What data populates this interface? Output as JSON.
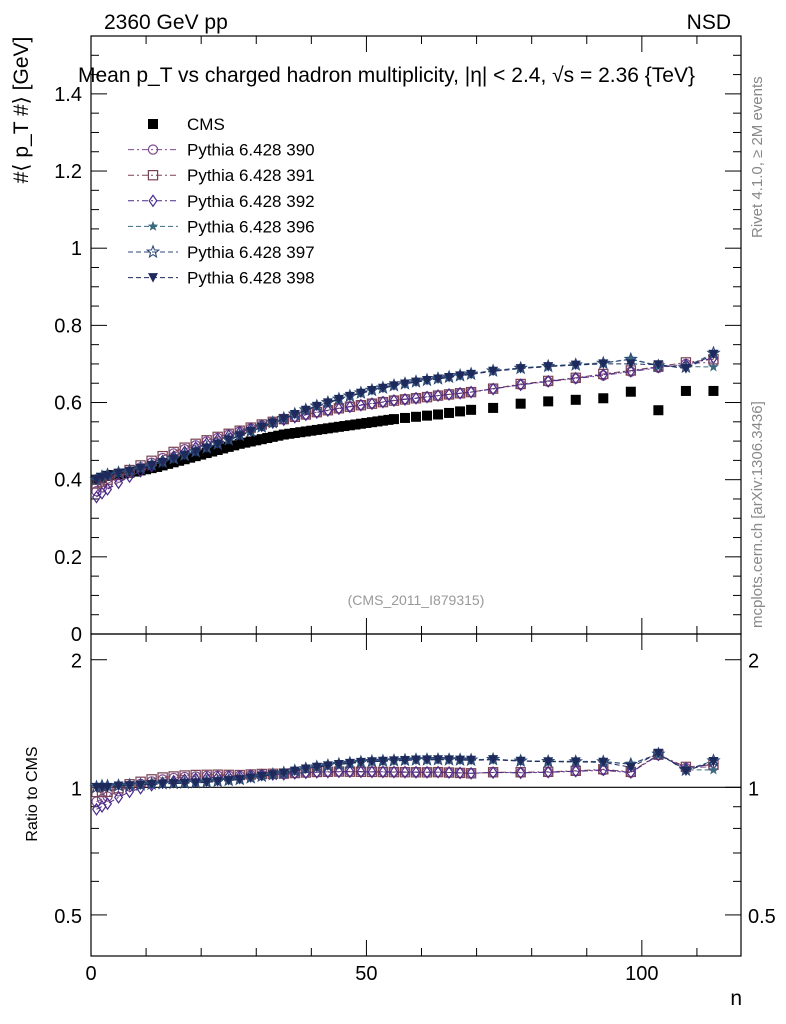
{
  "header": {
    "left": "2360 GeV pp",
    "right": "NSD",
    "title": "Mean p_T vs charged hadron multiplicity, |η| < 2.4, √s = 2.36 {TeV}",
    "analysis_tag": "(CMS_2011_I879315)"
  },
  "side_labels": {
    "rivet": "Rivet 4.1.0, ≥ 2M events",
    "mcplots": "mcplots.cern.ch [arXiv:1306.3436]"
  },
  "chart_data": [
    {
      "type": "scatter",
      "panel": "main",
      "title": "Mean p_T vs charged hadron multiplicity, |η| < 2.4, √s = 2.36 {TeV}",
      "xlabel": "n",
      "ylabel": "#⟨ p_T #⟩ [GeV]",
      "xlim": [
        0,
        118
      ],
      "ylim": [
        0,
        1.55
      ],
      "x_ticks": [
        "0",
        "50",
        "100"
      ],
      "y_ticks": [
        "0",
        "0.2",
        "0.4",
        "0.6",
        "0.8",
        "1",
        "1.2",
        "1.4"
      ],
      "legend_position": "top-left",
      "series": [
        {
          "name": "CMS",
          "marker": "square-filled",
          "color": "#000000",
          "dash": "none",
          "x": [
            1,
            2,
            3,
            4,
            5,
            6,
            7,
            8,
            9,
            10,
            11,
            12,
            13,
            14,
            15,
            16,
            17,
            18,
            19,
            20,
            21,
            22,
            23,
            24,
            25,
            26,
            27,
            28,
            29,
            30,
            31,
            32,
            33,
            34,
            35,
            36,
            37,
            38,
            39,
            40,
            41,
            42,
            43,
            44,
            45,
            46,
            47,
            48,
            49,
            50,
            51,
            52,
            53,
            54,
            55,
            57,
            59,
            61,
            63,
            65,
            67,
            69,
            73,
            78,
            83,
            88,
            93,
            98,
            103,
            108,
            113
          ],
          "y": [
            0.4,
            0.405,
            0.41,
            0.412,
            0.414,
            0.416,
            0.418,
            0.421,
            0.424,
            0.427,
            0.43,
            0.433,
            0.437,
            0.441,
            0.445,
            0.449,
            0.453,
            0.457,
            0.461,
            0.465,
            0.469,
            0.473,
            0.477,
            0.481,
            0.485,
            0.489,
            0.493,
            0.496,
            0.499,
            0.502,
            0.505,
            0.508,
            0.511,
            0.514,
            0.517,
            0.519,
            0.521,
            0.523,
            0.525,
            0.527,
            0.529,
            0.531,
            0.533,
            0.535,
            0.537,
            0.539,
            0.541,
            0.543,
            0.545,
            0.547,
            0.549,
            0.551,
            0.553,
            0.555,
            0.557,
            0.56,
            0.563,
            0.566,
            0.569,
            0.573,
            0.577,
            0.581,
            0.586,
            0.597,
            0.603,
            0.607,
            0.611,
            0.628,
            0.58,
            0.63,
            0.63
          ]
        },
        {
          "name": "Pythia 6.428 390",
          "marker": "circle-open",
          "color": "#7b4a8e",
          "dash": "dashdot",
          "x": [
            1,
            2,
            3,
            5,
            7,
            9,
            11,
            13,
            15,
            17,
            19,
            21,
            23,
            25,
            27,
            29,
            31,
            33,
            35,
            37,
            39,
            41,
            43,
            45,
            47,
            49,
            51,
            53,
            55,
            57,
            59,
            61,
            63,
            65,
            67,
            69,
            73,
            78,
            83,
            88,
            93,
            98,
            103,
            108,
            113
          ],
          "y": [
            0.37,
            0.38,
            0.39,
            0.405,
            0.42,
            0.432,
            0.444,
            0.456,
            0.468,
            0.479,
            0.489,
            0.499,
            0.508,
            0.517,
            0.525,
            0.533,
            0.541,
            0.549,
            0.556,
            0.563,
            0.569,
            0.575,
            0.58,
            0.585,
            0.59,
            0.594,
            0.598,
            0.602,
            0.606,
            0.609,
            0.612,
            0.615,
            0.618,
            0.621,
            0.624,
            0.627,
            0.636,
            0.646,
            0.654,
            0.662,
            0.67,
            0.68,
            0.69,
            0.7,
            0.705
          ]
        },
        {
          "name": "Pythia 6.428 391",
          "marker": "square-open",
          "color": "#7a4254",
          "dash": "dashdot",
          "x": [
            1,
            2,
            3,
            5,
            7,
            9,
            11,
            13,
            15,
            17,
            19,
            21,
            23,
            25,
            27,
            29,
            31,
            33,
            35,
            37,
            39,
            41,
            43,
            45,
            47,
            49,
            51,
            53,
            55,
            57,
            59,
            61,
            63,
            65,
            67,
            69,
            73,
            78,
            83,
            88,
            93,
            98,
            103,
            108,
            113
          ],
          "y": [
            0.39,
            0.395,
            0.4,
            0.412,
            0.425,
            0.437,
            0.449,
            0.461,
            0.472,
            0.483,
            0.493,
            0.502,
            0.511,
            0.519,
            0.527,
            0.535,
            0.543,
            0.55,
            0.557,
            0.563,
            0.569,
            0.575,
            0.58,
            0.585,
            0.589,
            0.593,
            0.597,
            0.601,
            0.605,
            0.608,
            0.611,
            0.614,
            0.618,
            0.621,
            0.624,
            0.627,
            0.636,
            0.648,
            0.656,
            0.664,
            0.674,
            0.683,
            0.693,
            0.704,
            0.712
          ]
        },
        {
          "name": "Pythia 6.428 392",
          "marker": "diamond-open",
          "color": "#4a2a8a",
          "dash": "dashdot",
          "x": [
            1,
            2,
            3,
            5,
            7,
            9,
            11,
            13,
            15,
            17,
            19,
            21,
            23,
            25,
            27,
            29,
            31,
            33,
            35,
            37,
            39,
            41,
            43,
            45,
            47,
            49,
            51,
            53,
            55,
            57,
            59,
            61,
            63,
            65,
            67,
            69,
            73,
            78,
            83,
            88,
            93,
            98,
            103,
            108,
            113
          ],
          "y": [
            0.355,
            0.365,
            0.375,
            0.392,
            0.408,
            0.422,
            0.435,
            0.448,
            0.46,
            0.472,
            0.483,
            0.494,
            0.504,
            0.514,
            0.523,
            0.532,
            0.54,
            0.548,
            0.555,
            0.562,
            0.568,
            0.574,
            0.579,
            0.584,
            0.589,
            0.593,
            0.597,
            0.601,
            0.605,
            0.608,
            0.611,
            0.614,
            0.618,
            0.621,
            0.624,
            0.627,
            0.635,
            0.646,
            0.655,
            0.663,
            0.672,
            0.681,
            0.692,
            0.698,
            0.716
          ]
        },
        {
          "name": "Pythia 6.428 396",
          "marker": "star-filled",
          "color": "#3c6a80",
          "dash": "dashed",
          "x": [
            1,
            2,
            3,
            5,
            7,
            9,
            11,
            13,
            15,
            17,
            19,
            21,
            23,
            25,
            27,
            29,
            31,
            33,
            35,
            37,
            39,
            41,
            43,
            45,
            47,
            49,
            51,
            53,
            55,
            57,
            59,
            61,
            63,
            65,
            67,
            69,
            73,
            78,
            83,
            88,
            93,
            98,
            103,
            108,
            113
          ],
          "y": [
            0.405,
            0.41,
            0.415,
            0.42,
            0.425,
            0.432,
            0.44,
            0.448,
            0.456,
            0.465,
            0.474,
            0.484,
            0.494,
            0.505,
            0.516,
            0.527,
            0.538,
            0.549,
            0.56,
            0.571,
            0.582,
            0.592,
            0.601,
            0.61,
            0.618,
            0.626,
            0.633,
            0.639,
            0.645,
            0.65,
            0.655,
            0.659,
            0.663,
            0.667,
            0.671,
            0.675,
            0.683,
            0.69,
            0.695,
            0.699,
            0.703,
            0.713,
            0.696,
            0.693,
            0.692
          ]
        },
        {
          "name": "Pythia 6.428 397",
          "marker": "star-open",
          "color": "#2c4a78",
          "dash": "dashed",
          "x": [
            1,
            2,
            3,
            5,
            7,
            9,
            11,
            13,
            15,
            17,
            19,
            21,
            23,
            25,
            27,
            29,
            31,
            33,
            35,
            37,
            39,
            41,
            43,
            45,
            47,
            49,
            51,
            53,
            55,
            57,
            59,
            61,
            63,
            65,
            67,
            69,
            73,
            78,
            83,
            88,
            93,
            98,
            103,
            108,
            113
          ],
          "y": [
            0.4,
            0.408,
            0.413,
            0.418,
            0.423,
            0.43,
            0.438,
            0.446,
            0.455,
            0.464,
            0.473,
            0.483,
            0.493,
            0.504,
            0.515,
            0.526,
            0.537,
            0.548,
            0.559,
            0.57,
            0.581,
            0.591,
            0.6,
            0.609,
            0.617,
            0.625,
            0.632,
            0.638,
            0.644,
            0.649,
            0.654,
            0.658,
            0.662,
            0.666,
            0.67,
            0.674,
            0.682,
            0.689,
            0.694,
            0.698,
            0.702,
            0.712,
            0.695,
            0.692,
            0.728
          ]
        },
        {
          "name": "Pythia 6.428 398",
          "marker": "triangle-down-filled",
          "color": "#1f2a5c",
          "dash": "dashed",
          "x": [
            1,
            2,
            3,
            5,
            7,
            9,
            11,
            13,
            15,
            17,
            19,
            21,
            23,
            25,
            27,
            29,
            31,
            33,
            35,
            37,
            39,
            41,
            43,
            45,
            47,
            49,
            51,
            53,
            55,
            57,
            59,
            61,
            63,
            65,
            67,
            69,
            73,
            78,
            83,
            88,
            93,
            98,
            103,
            108,
            113
          ],
          "y": [
            0.4,
            0.405,
            0.41,
            0.417,
            0.422,
            0.429,
            0.437,
            0.445,
            0.454,
            0.463,
            0.472,
            0.482,
            0.492,
            0.503,
            0.514,
            0.525,
            0.536,
            0.547,
            0.558,
            0.569,
            0.58,
            0.59,
            0.599,
            0.608,
            0.616,
            0.624,
            0.631,
            0.637,
            0.643,
            0.648,
            0.653,
            0.657,
            0.661,
            0.665,
            0.669,
            0.673,
            0.681,
            0.688,
            0.693,
            0.697,
            0.7,
            0.7,
            0.698,
            0.688,
            0.725
          ]
        }
      ]
    },
    {
      "type": "scatter",
      "panel": "ratio",
      "xlabel": "n",
      "ylabel": "Ratio to CMS",
      "xlim": [
        0,
        118
      ],
      "ylim": [
        0.4,
        2.3
      ],
      "scale": "log",
      "x_ticks": [
        "0",
        "50",
        "100"
      ],
      "y_ticks": [
        "0.5",
        "1",
        "2"
      ],
      "reference_line": 1
    }
  ]
}
